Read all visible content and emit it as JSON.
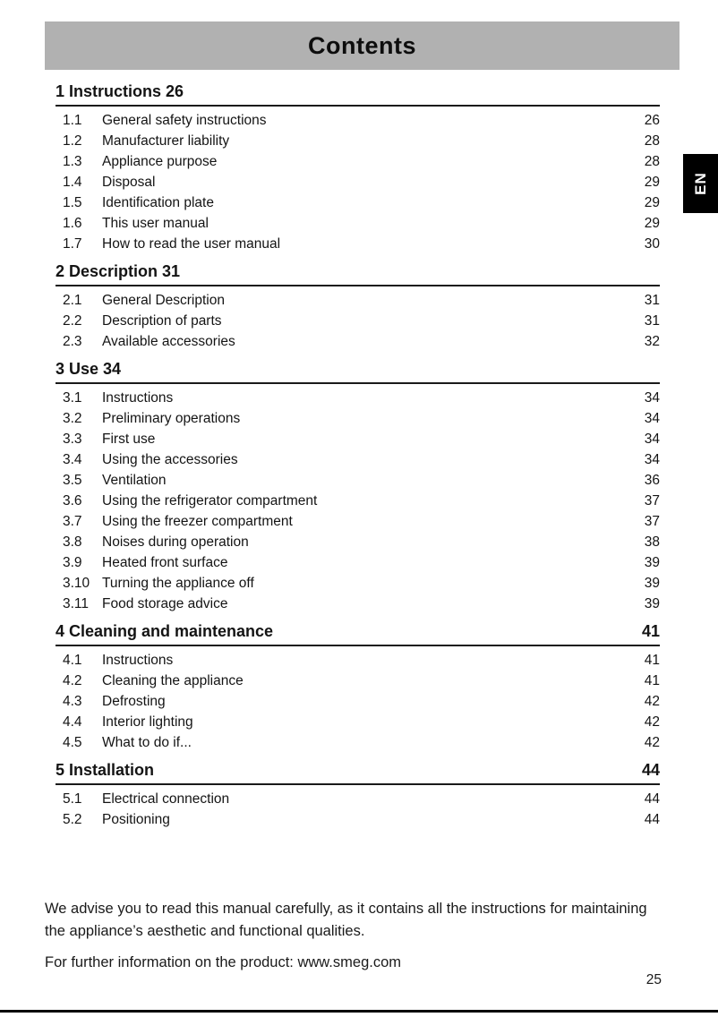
{
  "header": {
    "title": "Contents",
    "language_tab": "EN"
  },
  "toc": {
    "sections": [
      {
        "number": "1",
        "title": "Instructions",
        "page": "26",
        "page_style": "inline",
        "items": [
          {
            "number": "1.1",
            "label": "General safety instructions",
            "page": "26"
          },
          {
            "number": "1.2",
            "label": "Manufacturer liability",
            "page": "28"
          },
          {
            "number": "1.3",
            "label": "Appliance purpose",
            "page": "28"
          },
          {
            "number": "1.4",
            "label": "Disposal",
            "page": "29"
          },
          {
            "number": "1.5",
            "label": "Identification plate",
            "page": "29"
          },
          {
            "number": "1.6",
            "label": "This user manual",
            "page": "29"
          },
          {
            "number": "1.7",
            "label": "How to read the user manual",
            "page": "30"
          }
        ]
      },
      {
        "number": "2",
        "title": "Description",
        "page": "31",
        "page_style": "inline",
        "items": [
          {
            "number": "2.1",
            "label": "General Description",
            "page": "31"
          },
          {
            "number": "2.2",
            "label": "Description of parts",
            "page": "31"
          },
          {
            "number": "2.3",
            "label": "Available accessories",
            "page": "32"
          }
        ]
      },
      {
        "number": "3",
        "title": "Use",
        "page": "34",
        "page_style": "inline",
        "items": [
          {
            "number": "3.1",
            "label": "Instructions",
            "page": "34"
          },
          {
            "number": "3.2",
            "label": "Preliminary operations",
            "page": "34"
          },
          {
            "number": "3.3",
            "label": "First use",
            "page": "34"
          },
          {
            "number": "3.4",
            "label": "Using the accessories",
            "page": "34"
          },
          {
            "number": "3.5",
            "label": "Ventilation",
            "page": "36"
          },
          {
            "number": "3.6",
            "label": "Using the refrigerator compartment",
            "page": "37"
          },
          {
            "number": "3.7",
            "label": "Using the freezer compartment",
            "page": "37"
          },
          {
            "number": "3.8",
            "label": "Noises during operation",
            "page": "38"
          },
          {
            "number": "3.9",
            "label": "Heated front surface",
            "page": "39"
          },
          {
            "number": "3.10",
            "label": "Turning the appliance off",
            "page": "39"
          },
          {
            "number": "3.11",
            "label": "Food storage advice",
            "page": "39"
          }
        ]
      },
      {
        "number": "4",
        "title": "Cleaning and maintenance",
        "page": "41",
        "page_style": "right",
        "items": [
          {
            "number": "4.1",
            "label": "Instructions",
            "page": "41"
          },
          {
            "number": "4.2",
            "label": "Cleaning the appliance",
            "page": "41"
          },
          {
            "number": "4.3",
            "label": "Defrosting",
            "page": "42"
          },
          {
            "number": "4.4",
            "label": "Interior lighting",
            "page": "42"
          },
          {
            "number": "4.5",
            "label": "What to do if...",
            "page": "42"
          }
        ]
      },
      {
        "number": "5",
        "title": "Installation",
        "page": "44",
        "page_style": "right",
        "items": [
          {
            "number": "5.1",
            "label": "Electrical connection",
            "page": "44"
          },
          {
            "number": "5.2",
            "label": "Positioning",
            "page": "44"
          }
        ]
      }
    ]
  },
  "footer": {
    "paragraphs": [
      [
        "We advise you to read this manual carefully, as it contains all the instructions for maintaining",
        "the appliance’s aesthetic and functional qualities."
      ],
      [
        "For further information on the product: www.smeg.com"
      ]
    ]
  },
  "page": {
    "number": "25"
  },
  "colors": {
    "title_bar_bg": "#b1b1b1",
    "language_tab_bg": "#000000",
    "language_tab_text": "#ffffff",
    "text": "#141414",
    "rule": "#1a1a1a"
  }
}
